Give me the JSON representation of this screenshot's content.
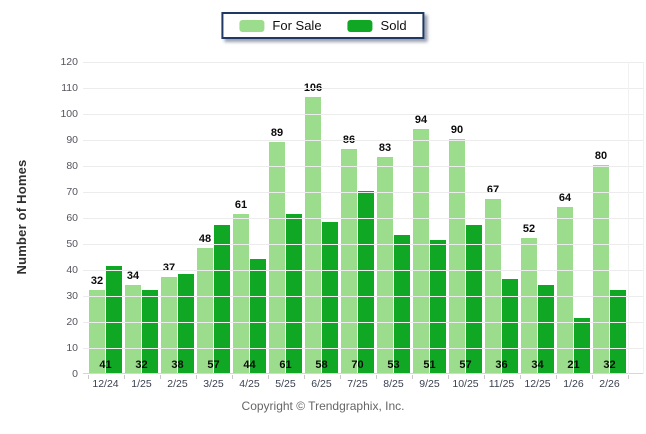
{
  "legend": {
    "items": [
      {
        "label": "For Sale",
        "color": "#9cdc8d"
      },
      {
        "label": "Sold",
        "color": "#10a724"
      }
    ]
  },
  "chart_data": {
    "type": "bar",
    "title": "",
    "categories": [
      "12/24",
      "1/25",
      "2/25",
      "3/25",
      "4/25",
      "5/25",
      "6/25",
      "7/25",
      "8/25",
      "9/25",
      "10/25",
      "11/25",
      "12/25",
      "1/26",
      "2/26"
    ],
    "series": [
      {
        "name": "For Sale",
        "color": "#9cdc8d",
        "values": [
          32,
          34,
          37,
          48,
          61,
          89,
          106,
          86,
          83,
          94,
          90,
          67,
          52,
          64,
          80
        ]
      },
      {
        "name": "Sold",
        "color": "#10a724",
        "values": [
          41,
          32,
          38,
          57,
          44,
          61,
          58,
          70,
          53,
          51,
          57,
          36,
          34,
          21,
          32
        ]
      }
    ],
    "ylabel": "Number of Homes",
    "xlabel": "",
    "ylim": [
      0,
      120
    ],
    "ytick_step": 10,
    "grid": "horizontal",
    "legend_position": "top-center",
    "value_labels": "For Sale above bars, Sold inside bar base"
  },
  "footer": {
    "copyright": "Copyright © Trendgraphix, Inc."
  }
}
